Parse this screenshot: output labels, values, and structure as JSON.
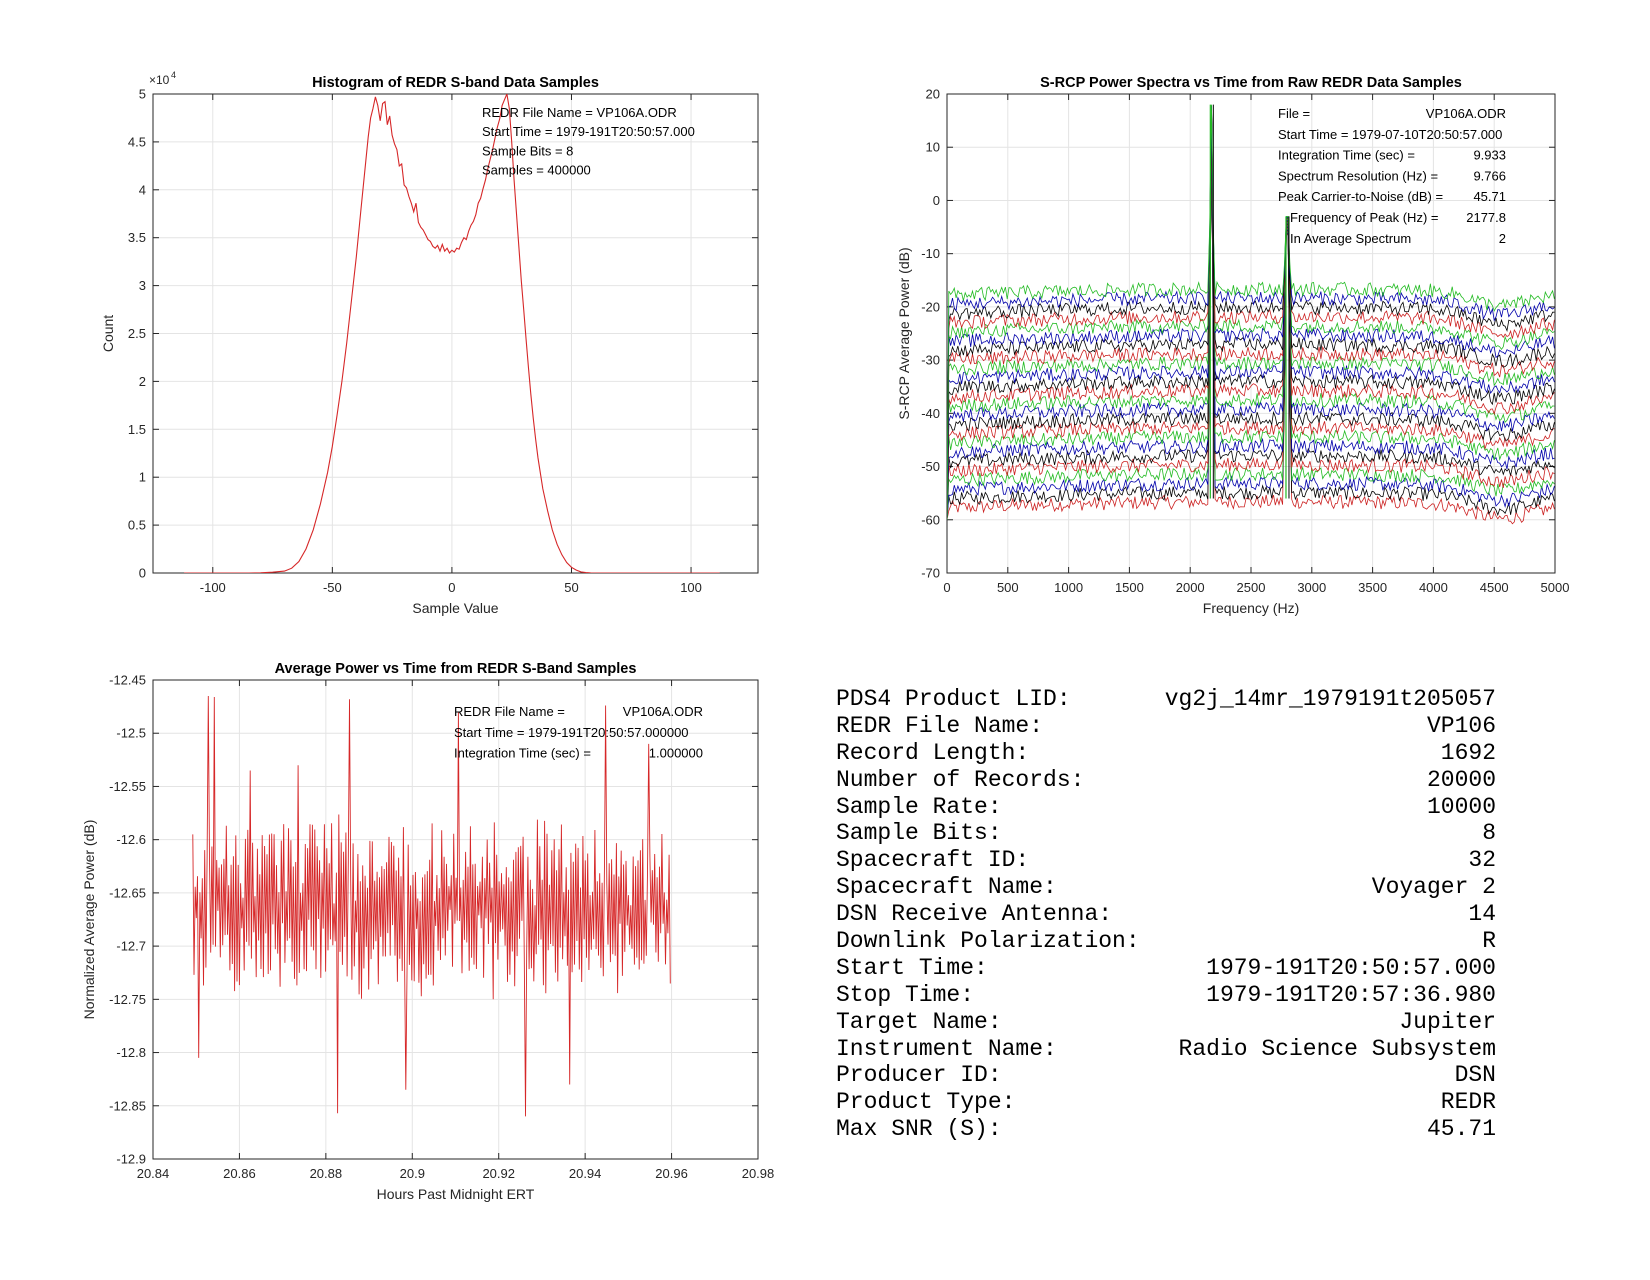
{
  "chart_data": [
    {
      "type": "line",
      "title": "Histogram of REDR S-band Data Samples",
      "xlabel": "Sample Value",
      "ylabel": "Count",
      "y_exponent_label": "×10",
      "y_exponent_power": "4",
      "xlim": [
        -125,
        128
      ],
      "ylim": [
        0,
        50000
      ],
      "xticks": [
        -100,
        -50,
        0,
        50,
        100
      ],
      "xtick_labels": [
        "-100",
        "-50",
        "0",
        "50",
        "100"
      ],
      "yticks": [
        0,
        5000,
        10000,
        15000,
        20000,
        25000,
        30000,
        35000,
        40000,
        45000,
        50000
      ],
      "ytick_labels": [
        "0",
        "0.5",
        "1",
        "1.5",
        "2",
        "2.5",
        "3",
        "3.5",
        "4",
        "4.5",
        "5"
      ],
      "grid": true,
      "color": "#d62728",
      "annotations": [
        "REDR File Name = VP106A.ODR",
        "Start Time = 1979-191T20:50:57.000",
        "Sample Bits = 8",
        "Samples = 400000"
      ],
      "series": [
        {
          "x": [
            -112,
            -100,
            -90,
            -85,
            -80,
            -75,
            -70,
            -67,
            -64,
            -61,
            -58,
            -55,
            -52,
            -50,
            -48,
            -46,
            -44,
            -42,
            -40,
            -38,
            -36,
            -35,
            -34,
            -33,
            -32,
            -31,
            -30,
            -29,
            -28,
            -27,
            -26,
            -25,
            -24,
            -23,
            -22,
            -21,
            -20,
            -19,
            -18,
            -17,
            -16,
            -15,
            -14,
            -13,
            -12,
            -11,
            -10,
            -9,
            -8,
            -7,
            -6,
            -5,
            -4,
            -3,
            -2,
            -1,
            0,
            1,
            2,
            3,
            4,
            5,
            6,
            7,
            8,
            9,
            10,
            11,
            12,
            13,
            14,
            15,
            16,
            17,
            18,
            19,
            20,
            21,
            22,
            23,
            24,
            25,
            26,
            27,
            28,
            29,
            30,
            31,
            32,
            33,
            34,
            35,
            36,
            38,
            40,
            42,
            44,
            46,
            48,
            50,
            52,
            54,
            56,
            58,
            61,
            64,
            67,
            70,
            75,
            80,
            90,
            100,
            112
          ],
          "y": [
            0,
            0,
            0,
            0,
            20,
            80,
            200,
            500,
            1200,
            2500,
            4500,
            7200,
            10500,
            13200,
            16500,
            20000,
            24000,
            28500,
            33000,
            38000,
            43000,
            45500,
            47500,
            48500,
            49700,
            48800,
            47200,
            49000,
            49200,
            46800,
            47700,
            45700,
            44800,
            44200,
            42500,
            42700,
            40500,
            40200,
            39300,
            38600,
            37700,
            38600,
            36600,
            36100,
            35800,
            35300,
            34800,
            34600,
            34100,
            33900,
            34200,
            33600,
            34300,
            33600,
            33900,
            33400,
            33700,
            33500,
            33900,
            33800,
            34500,
            35000,
            34800,
            35700,
            36300,
            36700,
            37400,
            38600,
            39100,
            40100,
            41000,
            42200,
            43200,
            44200,
            45400,
            46500,
            47400,
            48800,
            49400,
            50000,
            48500,
            45000,
            41000,
            37500,
            34000,
            30500,
            27500,
            24500,
            21500,
            18700,
            16200,
            14000,
            12000,
            8800,
            6500,
            4500,
            3000,
            1900,
            1100,
            600,
            300,
            120,
            50,
            10,
            0,
            0,
            0,
            0,
            0,
            0,
            0,
            0,
            0
          ]
        }
      ]
    },
    {
      "type": "line",
      "title": "S-RCP Power Spectra vs Time from Raw REDR Data Samples",
      "xlabel": "Frequency (Hz)",
      "ylabel": "S-RCP Average Power (dB)",
      "xlim": [
        0,
        5000
      ],
      "ylim": [
        -70,
        20
      ],
      "xticks": [
        0,
        500,
        1000,
        1500,
        2000,
        2500,
        3000,
        3500,
        4000,
        4500,
        5000
      ],
      "xtick_labels": [
        "0",
        "500",
        "1000",
        "1500",
        "2000",
        "2500",
        "3000",
        "3500",
        "4000",
        "4500",
        "5000"
      ],
      "yticks": [
        -70,
        -60,
        -50,
        -40,
        -30,
        -20,
        -10,
        0,
        10,
        20
      ],
      "ytick_labels": [
        "-70",
        "-60",
        "-50",
        "-40",
        "-30",
        "-20",
        "-10",
        "0",
        "10",
        "20"
      ],
      "grid": true,
      "num_spectra": 24,
      "top_level_db": -17,
      "bottom_level_db": -57,
      "color_cycle": [
        "#22bb22",
        "#0000aa",
        "#000000",
        "#cc2222"
      ],
      "carrier_peaks": [
        {
          "frequency_hz": 2177.8,
          "peak_db": 18,
          "floor_db": -56
        },
        {
          "frequency_hz": 2800,
          "peak_db": -3,
          "floor_db": -56
        }
      ],
      "annotations": [
        {
          "label": "File =",
          "value": "VP106A.ODR"
        },
        {
          "label": "Start Time = 1979-07-10T20:50:57.000",
          "value": ""
        },
        {
          "label": "Integration Time (sec) =",
          "value": "9.933"
        },
        {
          "label": "Spectrum Resolution (Hz) =",
          "value": "9.766"
        },
        {
          "label": "Peak Carrier-to-Noise (dB) =",
          "value": "45.71"
        },
        {
          "label": "Frequency of Peak (Hz) =",
          "value": "2177.8"
        },
        {
          "label": "In Average Spectrum",
          "value": "2"
        }
      ]
    },
    {
      "type": "line",
      "title": "Average Power vs Time from REDR S-Band Samples",
      "xlabel": "Hours Past Midnight ERT",
      "ylabel": "Normalized Average Power (dB)",
      "xlim": [
        20.84,
        20.98
      ],
      "ylim": [
        -12.9,
        -12.45
      ],
      "xticks": [
        20.84,
        20.86,
        20.88,
        20.9,
        20.92,
        20.94,
        20.96,
        20.98
      ],
      "xtick_labels": [
        "20.84",
        "20.86",
        "20.88",
        "20.9",
        "20.92",
        "20.94",
        "20.96",
        "20.98"
      ],
      "yticks": [
        -12.9,
        -12.85,
        -12.8,
        -12.75,
        -12.7,
        -12.65,
        -12.6,
        -12.55,
        -12.5,
        -12.45
      ],
      "ytick_labels": [
        "-12.9",
        "-12.85",
        "-12.8",
        "-12.75",
        "-12.7",
        "-12.65",
        "-12.6",
        "-12.55",
        "-12.5",
        "-12.45"
      ],
      "grid": true,
      "color": "#d62728",
      "annotations": [
        {
          "label": "REDR File Name =",
          "value": "VP106A.ODR"
        },
        {
          "label": "Start Time = 1979-191T20:50:57.000000",
          "value": ""
        },
        {
          "label": "Integration Time (sec) =",
          "value": "1.000000"
        }
      ],
      "series": [
        {
          "x_start": 20.8492,
          "x_end": 20.9597,
          "mean": -12.665,
          "spread": 0.06,
          "num_points": 400,
          "spikes_up": [
            {
              "x": 20.8506,
              "y": -12.52
            },
            {
              "x": 20.8527,
              "y": -12.465
            },
            {
              "x": 20.8541,
              "y": -12.466
            },
            {
              "x": 20.8625,
              "y": -12.535
            },
            {
              "x": 20.8735,
              "y": -12.53
            },
            {
              "x": 20.8855,
              "y": -12.468
            },
            {
              "x": 20.9108,
              "y": -12.48
            },
            {
              "x": 20.9447,
              "y": -12.474
            },
            {
              "x": 20.9548,
              "y": -12.51
            }
          ],
          "spikes_down": [
            {
              "x": 20.8505,
              "y": -12.805
            },
            {
              "x": 20.8826,
              "y": -12.857
            },
            {
              "x": 20.9261,
              "y": -12.86
            },
            {
              "x": 20.8985,
              "y": -12.835
            },
            {
              "x": 20.9365,
              "y": -12.83
            }
          ]
        }
      ]
    }
  ],
  "info_panel": {
    "rows": [
      {
        "label": "PDS4 Product LID:",
        "value": "vg2j_14mr_1979191t205057"
      },
      {
        "label": "REDR File Name:",
        "value": "VP106"
      },
      {
        "label": "Record Length:",
        "value": "1692"
      },
      {
        "label": "Number of Records:",
        "value": "20000"
      },
      {
        "label": "Sample Rate:",
        "value": "10000"
      },
      {
        "label": "Sample Bits:",
        "value": "8"
      },
      {
        "label": "Spacecraft ID:",
        "value": "32"
      },
      {
        "label": "Spacecraft Name:",
        "value": "Voyager 2"
      },
      {
        "label": "DSN Receive Antenna:",
        "value": "14"
      },
      {
        "label": "Downlink Polarization:",
        "value": "R"
      },
      {
        "label": "Start Time:",
        "value": "1979-191T20:50:57.000"
      },
      {
        "label": "Stop Time:",
        "value": "1979-191T20:57:36.980"
      },
      {
        "label": "Target Name:",
        "value": "Jupiter"
      },
      {
        "label": "Instrument Name:",
        "value": "Radio Science Subsystem"
      },
      {
        "label": "Producer ID:",
        "value": "DSN"
      },
      {
        "label": "Product Type:",
        "value": "REDR"
      },
      {
        "label": "Max SNR (S):",
        "value": "45.71"
      }
    ]
  }
}
